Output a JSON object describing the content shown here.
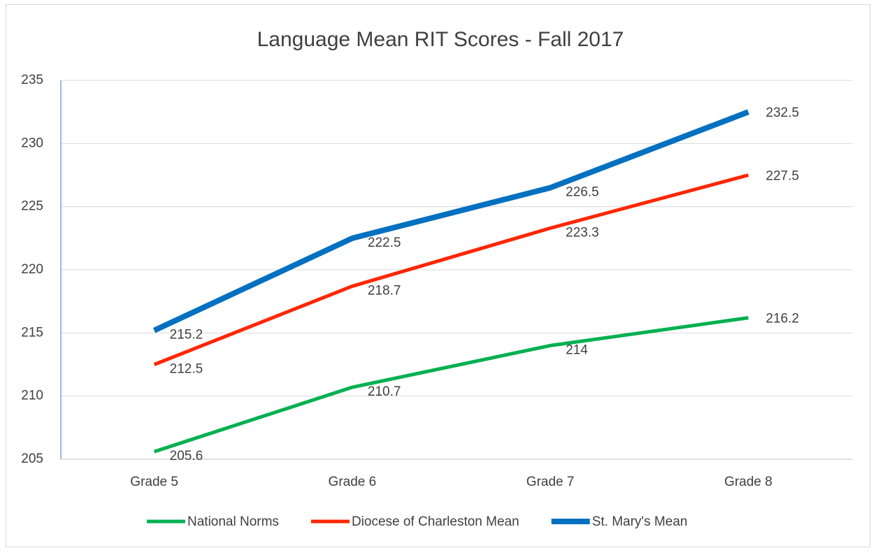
{
  "chart_data": {
    "type": "line",
    "title": "Language Mean RIT Scores - Fall 2017",
    "categories": [
      "Grade 5",
      "Grade 6",
      "Grade 7",
      "Grade 8"
    ],
    "series": [
      {
        "name": "National Norms",
        "color": "#00b050",
        "values": [
          205.6,
          210.7,
          214,
          216.2
        ]
      },
      {
        "name": "Diocese of Charleston Mean",
        "color": "#ff2600",
        "values": [
          212.5,
          218.7,
          223.3,
          227.5
        ]
      },
      {
        "name": "St. Mary's Mean",
        "color": "#0070c0",
        "values": [
          215.2,
          222.5,
          226.5,
          232.5
        ]
      }
    ],
    "ylim": [
      205,
      235
    ],
    "yticks": [
      205,
      210,
      215,
      220,
      225,
      230,
      235
    ],
    "grid": true,
    "legend": "bottom",
    "data_labels": true
  }
}
